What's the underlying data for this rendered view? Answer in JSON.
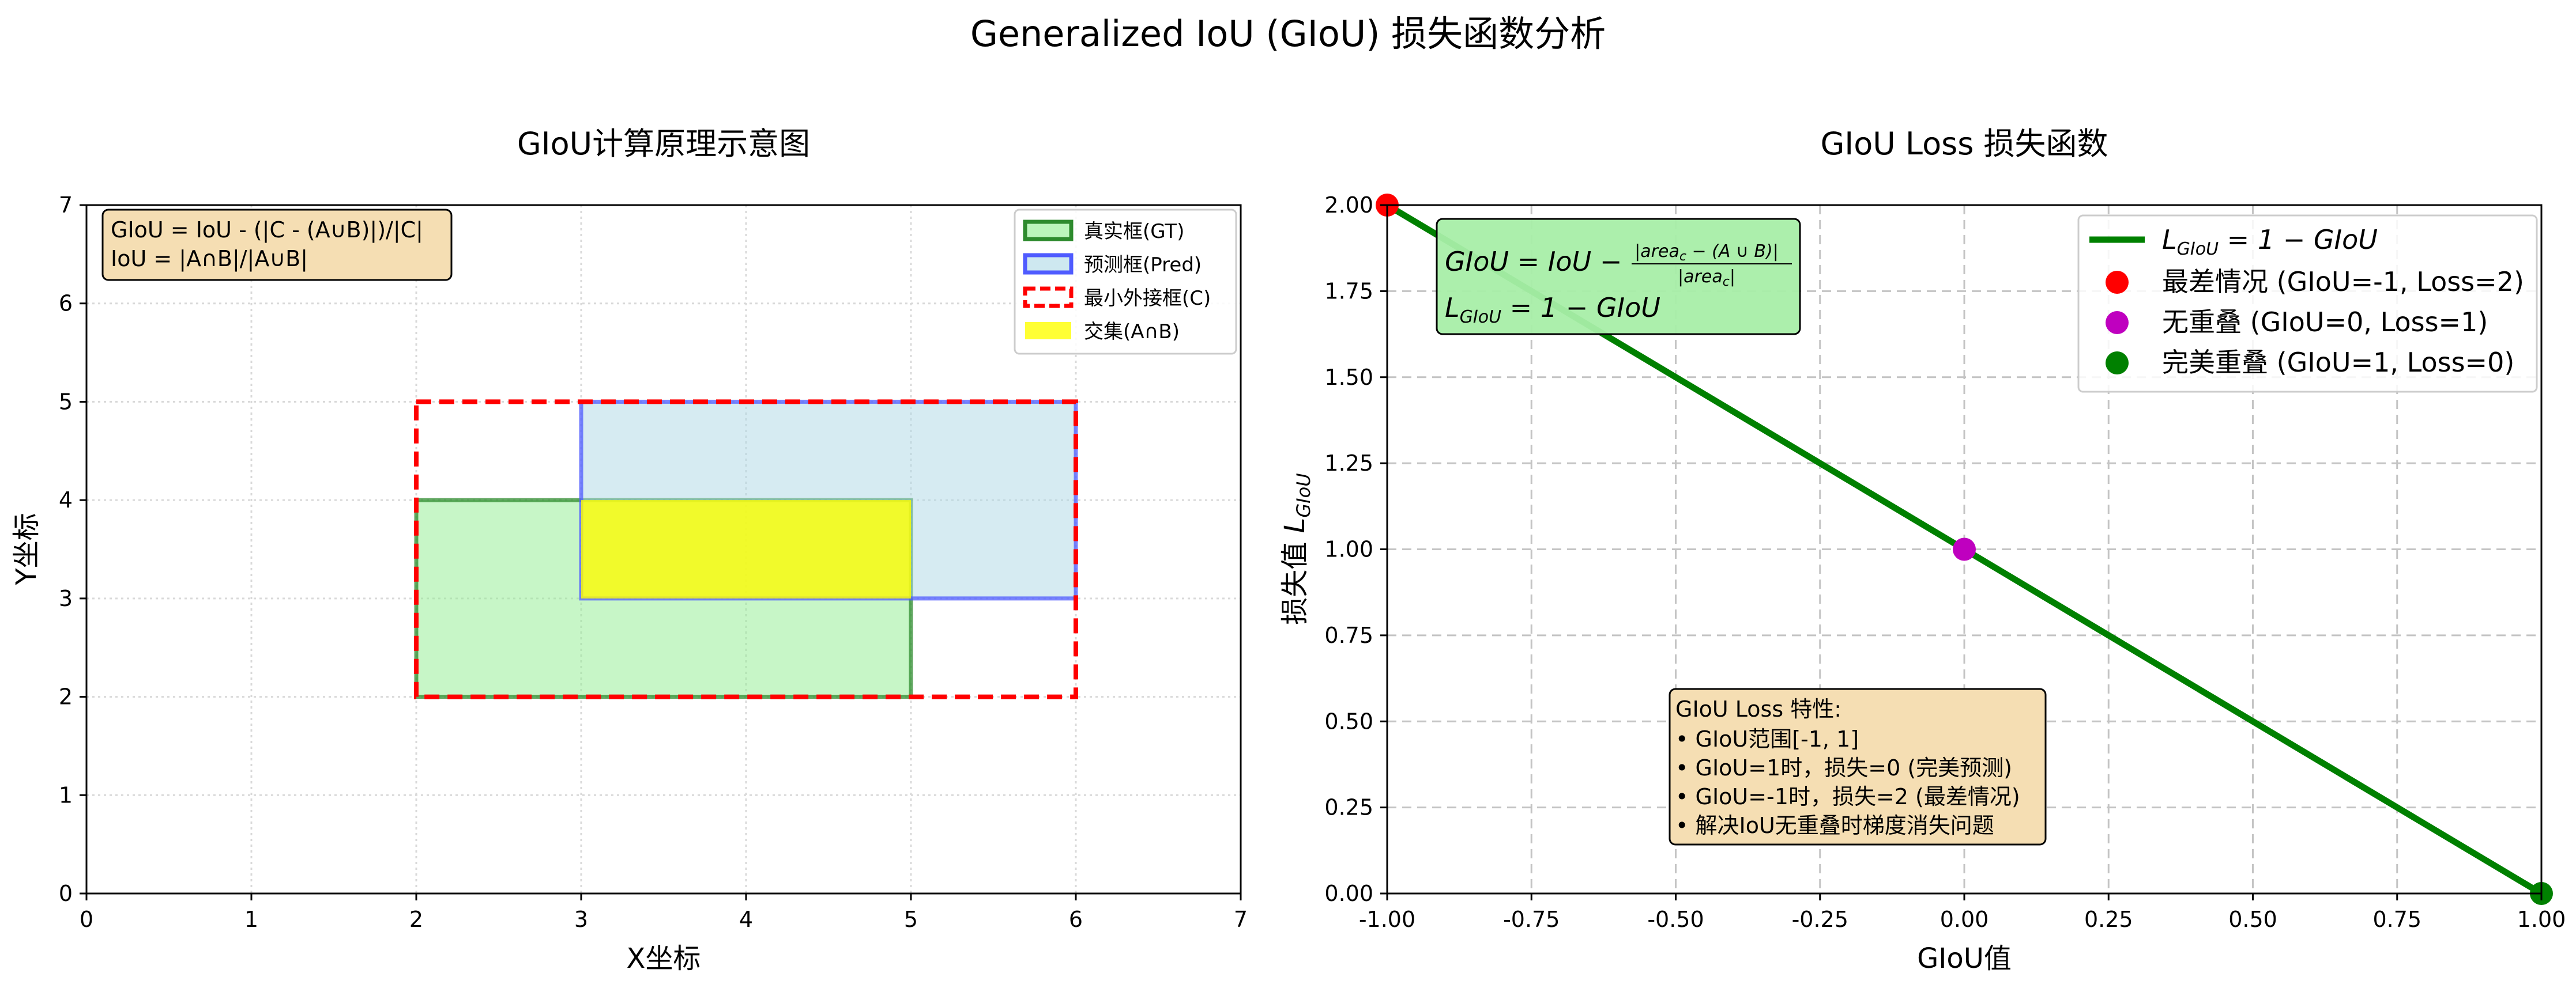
{
  "suptitle": "Generalized IoU (GIoU) 损失函数分析",
  "chart_data": [
    {
      "type": "diagram",
      "title": "GIoU计算原理示意图",
      "xlabel": "X坐标",
      "ylabel": "Y坐标",
      "xlim": [
        0,
        7
      ],
      "ylim": [
        0,
        7
      ],
      "xticks": [
        "0",
        "1",
        "2",
        "3",
        "4",
        "5",
        "6",
        "7"
      ],
      "yticks": [
        "0",
        "1",
        "2",
        "3",
        "4",
        "5",
        "6",
        "7"
      ],
      "grid": true,
      "boxes": [
        {
          "name": "真实框(GT)",
          "x1": 2,
          "y1": 2,
          "x2": 5,
          "y2": 4,
          "fill": "#90ee90",
          "fill_opacity": 0.5,
          "edge": "#2e8b2e",
          "style": "solid"
        },
        {
          "name": "预测框(Pred)",
          "x1": 3,
          "y1": 3,
          "x2": 6,
          "y2": 5,
          "fill": "#add8e6",
          "fill_opacity": 0.5,
          "edge": "#4f5bff",
          "style": "solid"
        },
        {
          "name": "最小外接框(C)",
          "x1": 2,
          "y1": 2,
          "x2": 6,
          "y2": 5,
          "fill": "none",
          "fill_opacity": 0,
          "edge": "#ff0000",
          "style": "dashed"
        },
        {
          "name": "交集(A∩B)",
          "x1": 3,
          "y1": 3,
          "x2": 5,
          "y2": 4,
          "fill": "#ffff00",
          "fill_opacity": 0.8,
          "edge": "none",
          "style": "solid"
        }
      ],
      "legend_position": "upper right",
      "annotation_lines": [
        "GIoU = IoU - (|C - (A∪B)|)/|C|",
        "IoU = |A∩B|/|A∪B|"
      ],
      "annotation_color": "#f5deb3"
    },
    {
      "type": "line",
      "title": "GIoU Loss 损失函数",
      "xlabel": "GIoU值",
      "ylabel_prefix": "损失值 ",
      "ylabel_math": "L",
      "ylabel_sub": "GIoU",
      "xlim": [
        -1,
        1
      ],
      "ylim": [
        0,
        2
      ],
      "xticks": [
        "-1.00",
        "-0.75",
        "-0.50",
        "-0.25",
        "0.00",
        "0.25",
        "0.50",
        "0.75",
        "1.00"
      ],
      "yticks": [
        "0.00",
        "0.25",
        "0.50",
        "0.75",
        "1.00",
        "1.25",
        "1.50",
        "1.75",
        "2.00"
      ],
      "grid": true,
      "series": [
        {
          "name": "L_GIoU = 1 − GIoU",
          "x": [
            -1,
            1
          ],
          "y": [
            2,
            0
          ],
          "color": "#008000"
        }
      ],
      "points": [
        {
          "name": "最差情况 (GIoU=-1, Loss=2)",
          "x": -1,
          "y": 2,
          "color": "#ff0000"
        },
        {
          "name": "无重叠 (GIoU=0, Loss=1)",
          "x": 0,
          "y": 1,
          "color": "#bf00bf"
        },
        {
          "name": "完美重叠 (GIoU=1, Loss=0)",
          "x": 1,
          "y": 0,
          "color": "#008000"
        }
      ],
      "legend_position": "upper right",
      "formula": {
        "line1_lhs": "GIoU = IoU −",
        "line1_num": "|area",
        "line1_num_sub": "c",
        "line1_num_rest": " − (A ∪ B)|",
        "line1_den": "|area",
        "line1_den_sub": "c",
        "line1_den_rest": "|",
        "line2_lhs": "L",
        "line2_sub": "GIoU",
        "line2_rhs": " = 1 − GIoU",
        "color": "#a8eea8"
      },
      "properties_box": {
        "title": "GIoU Loss 特性:",
        "lines": [
          "• GIoU范围[-1, 1]",
          "• GIoU=1时，损失=0 (完美预测)",
          "• GIoU=-1时，损失=2 (最差情况)",
          "• 解决IoU无重叠时梯度消失问题"
        ],
        "color": "#f5deb3"
      },
      "legend_line_label_math": "L",
      "legend_line_label_sub": "GIoU",
      "legend_line_label_rest": " = 1 − GIoU"
    }
  ]
}
